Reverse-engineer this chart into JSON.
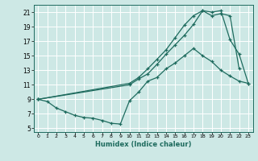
{
  "xlabel": "Humidex (Indice chaleur)",
  "bg_color": "#cde8e5",
  "grid_color": "#ffffff",
  "line_color": "#1e6b5e",
  "xlim": [
    -0.5,
    23.5
  ],
  "ylim": [
    4.5,
    22.0
  ],
  "xticks": [
    0,
    1,
    2,
    3,
    4,
    5,
    6,
    7,
    8,
    9,
    10,
    11,
    12,
    13,
    14,
    15,
    16,
    17,
    18,
    19,
    20,
    21,
    22,
    23
  ],
  "yticks": [
    5,
    7,
    9,
    11,
    13,
    15,
    17,
    19,
    21
  ],
  "line1_x": [
    0,
    10,
    11,
    12,
    13,
    14,
    15,
    16,
    17,
    18,
    19,
    20,
    21,
    22
  ],
  "line1_y": [
    9,
    11.2,
    12.0,
    13.2,
    14.5,
    15.8,
    17.5,
    19.2,
    20.5,
    21.2,
    20.5,
    20.8,
    20.5,
    13.2
  ],
  "line2_x": [
    0,
    10,
    11,
    12,
    13,
    14,
    15,
    16,
    17,
    18,
    19,
    20,
    21,
    22,
    23
  ],
  "line2_y": [
    9,
    11.0,
    11.8,
    12.5,
    13.8,
    15.2,
    16.5,
    17.8,
    19.3,
    21.2,
    21.0,
    21.2,
    17.2,
    15.2,
    11.2
  ],
  "line3_x": [
    0,
    1,
    2,
    3,
    4,
    5,
    6,
    7,
    8,
    9,
    10,
    11,
    12,
    13,
    14,
    15,
    16,
    17,
    18,
    19,
    20,
    21,
    22,
    23
  ],
  "line3_y": [
    9.0,
    8.7,
    7.8,
    7.3,
    6.8,
    6.5,
    6.4,
    6.1,
    5.7,
    5.6,
    8.8,
    10.0,
    11.5,
    12.0,
    13.2,
    14.0,
    15.0,
    16.0,
    15.0,
    14.2,
    13.0,
    12.2,
    11.5,
    11.2
  ]
}
